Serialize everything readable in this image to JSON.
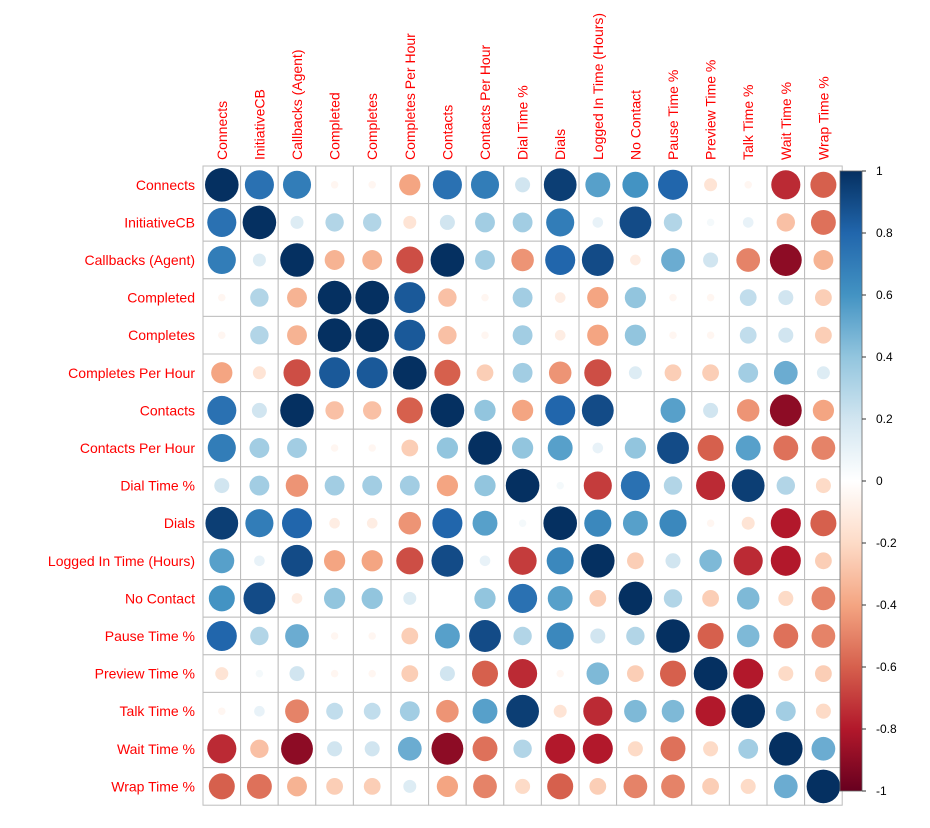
{
  "chart_data": {
    "type": "heatmap",
    "subtype": "correlation-circle-matrix",
    "variables": [
      "Connects",
      "InitiativeCB",
      "Callbacks (Agent)",
      "Completed",
      "Completes",
      "Completes Per Hour",
      "Contacts",
      "Contacts Per Hour",
      "Dial Time %",
      "Dials",
      "Logged In Time (Hours)",
      "No Contact",
      "Pause Time %",
      "Preview Time %",
      "Talk Time %",
      "Wait Time %",
      "Wrap Time %"
    ],
    "matrix": [
      [
        1,
        0.75,
        0.7,
        -0.05,
        -0.05,
        -0.4,
        0.75,
        0.7,
        0.2,
        0.95,
        0.55,
        0.6,
        0.8,
        -0.15,
        -0.05,
        -0.75,
        -0.6
      ],
      [
        0.75,
        1,
        0.15,
        0.3,
        0.3,
        -0.15,
        0.2,
        0.35,
        0.35,
        0.7,
        0.1,
        0.9,
        0.3,
        0.05,
        0.1,
        -0.3,
        -0.55
      ],
      [
        0.7,
        0.15,
        1,
        -0.35,
        -0.35,
        -0.65,
        1,
        0.35,
        -0.45,
        0.8,
        0.9,
        -0.1,
        0.5,
        0.2,
        -0.5,
        -0.9,
        -0.35
      ],
      [
        -0.05,
        0.3,
        -0.35,
        1,
        1,
        0.85,
        -0.3,
        -0.05,
        0.35,
        -0.1,
        -0.4,
        0.4,
        -0.05,
        -0.05,
        0.25,
        0.2,
        -0.25
      ],
      [
        -0.05,
        0.3,
        -0.35,
        1,
        1,
        0.85,
        -0.3,
        -0.05,
        0.35,
        -0.1,
        -0.4,
        0.4,
        -0.05,
        -0.05,
        0.25,
        0.2,
        -0.25
      ],
      [
        -0.4,
        -0.15,
        -0.65,
        0.85,
        0.85,
        1,
        -0.6,
        -0.25,
        0.35,
        -0.45,
        -0.65,
        0.15,
        -0.25,
        -0.25,
        0.35,
        0.5,
        0.15
      ],
      [
        0.75,
        0.2,
        1,
        -0.3,
        -0.3,
        -0.6,
        1,
        0.4,
        -0.4,
        0.8,
        0.9,
        0,
        0.55,
        0.2,
        -0.45,
        -0.9,
        -0.4
      ],
      [
        0.7,
        0.35,
        0.35,
        -0.05,
        -0.05,
        -0.25,
        0.4,
        1,
        0.4,
        0.55,
        0.1,
        0.4,
        0.9,
        -0.6,
        0.55,
        -0.55,
        -0.5
      ],
      [
        0.2,
        0.35,
        -0.45,
        0.35,
        0.35,
        0.35,
        -0.4,
        0.4,
        1,
        0.05,
        -0.7,
        0.75,
        0.3,
        -0.75,
        0.95,
        0.3,
        -0.2
      ],
      [
        0.95,
        0.7,
        0.8,
        -0.1,
        -0.1,
        -0.45,
        0.8,
        0.55,
        0.05,
        1,
        0.65,
        0.55,
        0.65,
        -0.05,
        -0.15,
        -0.8,
        -0.6
      ],
      [
        0.55,
        0.1,
        0.9,
        -0.4,
        -0.4,
        -0.65,
        0.9,
        0.1,
        -0.7,
        0.65,
        1,
        -0.25,
        0.2,
        0.45,
        -0.75,
        -0.8,
        -0.25
      ],
      [
        0.6,
        0.9,
        -0.1,
        0.4,
        0.4,
        0.15,
        0,
        0.4,
        0.75,
        0.55,
        -0.25,
        1,
        0.3,
        -0.25,
        0.45,
        -0.2,
        -0.5
      ],
      [
        0.8,
        0.3,
        0.5,
        -0.05,
        -0.05,
        -0.25,
        0.55,
        0.9,
        0.3,
        0.65,
        0.2,
        0.3,
        1,
        -0.6,
        0.45,
        -0.55,
        -0.5
      ],
      [
        -0.15,
        0.05,
        0.2,
        -0.05,
        -0.05,
        -0.25,
        0.2,
        -0.6,
        -0.75,
        -0.05,
        0.45,
        -0.25,
        -0.6,
        1,
        -0.8,
        -0.2,
        -0.25
      ],
      [
        -0.05,
        0.1,
        -0.5,
        0.25,
        0.25,
        0.35,
        -0.45,
        0.55,
        0.95,
        -0.15,
        -0.75,
        0.45,
        0.45,
        -0.8,
        1,
        0.35,
        -0.2
      ],
      [
        -0.75,
        -0.3,
        -0.9,
        0.2,
        0.2,
        0.5,
        -0.9,
        -0.55,
        0.3,
        -0.8,
        -0.8,
        -0.2,
        -0.55,
        -0.2,
        0.35,
        1,
        0.5
      ],
      [
        -0.6,
        -0.55,
        -0.35,
        -0.25,
        -0.25,
        0.15,
        -0.4,
        -0.5,
        -0.2,
        -0.6,
        -0.25,
        -0.5,
        -0.5,
        -0.25,
        -0.2,
        0.5,
        1
      ]
    ],
    "colorbar": {
      "range": [
        -1,
        1
      ],
      "ticks": [
        "1",
        "0.8",
        "0.6",
        "0.4",
        "0.2",
        "0",
        "-0.2",
        "-0.4",
        "-0.6",
        "-0.8",
        "-1"
      ],
      "colors": [
        "#67001f",
        "#b2182b",
        "#d6604d",
        "#f4a582",
        "#fddbc7",
        "#ffffff",
        "#d1e5f0",
        "#92c5de",
        "#4393c3",
        "#2166ac",
        "#053061"
      ]
    },
    "label_color": "#ff0000",
    "grid": true
  }
}
